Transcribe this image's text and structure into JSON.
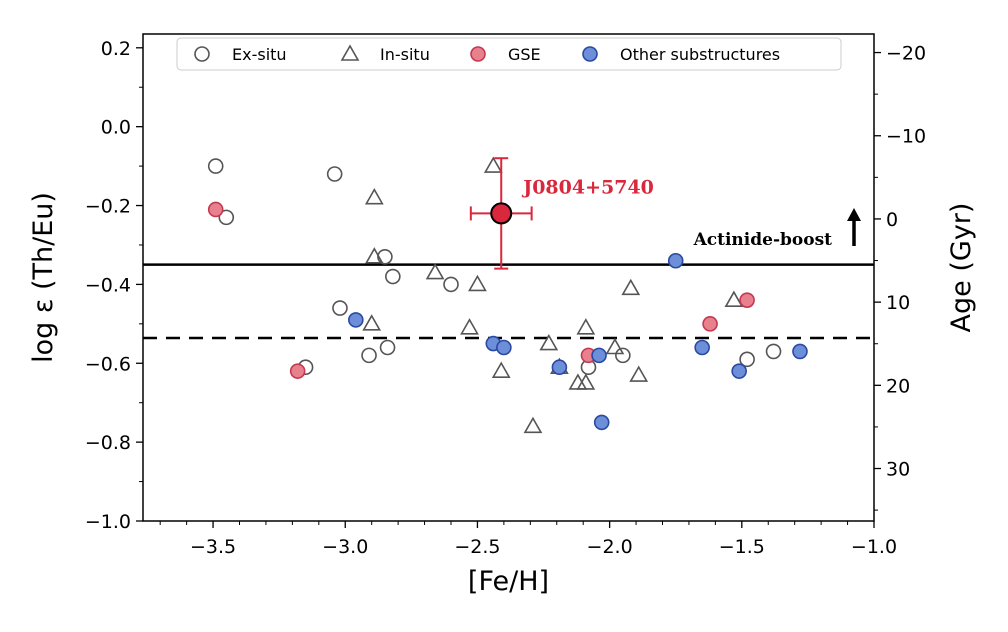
{
  "chart_data": {
    "type": "scatter",
    "xlabel": "[Fe/H]",
    "ylabel": "log ε (Th/Eu)",
    "y2label": "Age (Gyr)",
    "xlim": [
      -3.765,
      -1.0
    ],
    "ylim": [
      -1.0,
      0.235
    ],
    "xticks": [
      -3.5,
      -3.0,
      -2.5,
      -2.0,
      -1.5,
      -1.0
    ],
    "xtick_labels": [
      "−3.5",
      "−3.0",
      "−2.5",
      "−2.0",
      "−1.5",
      "−1.0"
    ],
    "yticks": [
      0.2,
      0.0,
      -0.2,
      -0.4,
      -0.6,
      -0.8,
      -1.0
    ],
    "ytick_labels": [
      "0.2",
      "0.0",
      "−0.2",
      "−0.4",
      "−0.6",
      "−0.8",
      "−1.0"
    ],
    "y2_axis": {
      "logeps_at_age_zero": -0.234,
      "gyr_per_dex": 47.4,
      "ticks": [
        -20,
        -10,
        0,
        10,
        20,
        30
      ],
      "tick_labels": [
        "−20",
        "−10",
        "0",
        "10",
        "20",
        "30"
      ]
    },
    "grid": false,
    "legend_position": "top",
    "series": [
      {
        "name": "Ex-situ",
        "marker": "circle-open",
        "color": "#555555",
        "points": [
          [
            -3.49,
            -0.1
          ],
          [
            -3.45,
            -0.23
          ],
          [
            -3.04,
            -0.12
          ],
          [
            -2.85,
            -0.33
          ],
          [
            -2.82,
            -0.38
          ],
          [
            -2.6,
            -0.4
          ],
          [
            -3.02,
            -0.46
          ],
          [
            -2.91,
            -0.58
          ],
          [
            -2.84,
            -0.56
          ],
          [
            -3.15,
            -0.61
          ],
          [
            -1.95,
            -0.58
          ],
          [
            -2.08,
            -0.61
          ],
          [
            -1.48,
            -0.59
          ],
          [
            -1.38,
            -0.57
          ]
        ]
      },
      {
        "name": "In-situ",
        "marker": "triangle-open",
        "color": "#555555",
        "points": [
          [
            -2.89,
            -0.18
          ],
          [
            -2.89,
            -0.33
          ],
          [
            -2.66,
            -0.37
          ],
          [
            -2.9,
            -0.5
          ],
          [
            -2.44,
            -0.1
          ],
          [
            -2.5,
            -0.4
          ],
          [
            -2.53,
            -0.51
          ],
          [
            -2.41,
            -0.62
          ],
          [
            -2.23,
            -0.55
          ],
          [
            -2.09,
            -0.51
          ],
          [
            -2.19,
            -0.61
          ],
          [
            -2.12,
            -0.65
          ],
          [
            -2.09,
            -0.65
          ],
          [
            -1.98,
            -0.56
          ],
          [
            -1.92,
            -0.41
          ],
          [
            -1.89,
            -0.63
          ],
          [
            -2.29,
            -0.76
          ],
          [
            -1.53,
            -0.44
          ]
        ]
      },
      {
        "name": "GSE",
        "marker": "circle-filled",
        "color": "#e8808e",
        "edge": "#c23a52",
        "points": [
          [
            -3.49,
            -0.21
          ],
          [
            -3.18,
            -0.62
          ],
          [
            -2.08,
            -0.58
          ],
          [
            -1.62,
            -0.5
          ],
          [
            -1.48,
            -0.44
          ]
        ]
      },
      {
        "name": "Other substructures",
        "marker": "circle-filled",
        "color": "#6d8ed8",
        "edge": "#2a4aa2",
        "points": [
          [
            -2.96,
            -0.49
          ],
          [
            -2.44,
            -0.55
          ],
          [
            -2.4,
            -0.56
          ],
          [
            -2.19,
            -0.61
          ],
          [
            -2.04,
            -0.58
          ],
          [
            -2.03,
            -0.75
          ],
          [
            -1.75,
            -0.34
          ],
          [
            -1.65,
            -0.56
          ],
          [
            -1.51,
            -0.62
          ],
          [
            -1.28,
            -0.57
          ]
        ]
      }
    ],
    "highlight": {
      "name": "J0804+5740",
      "x": -2.41,
      "y": -0.22,
      "xerr": 0.115,
      "yerr": 0.14,
      "color": "#d9283c"
    },
    "hlines": [
      {
        "y": -0.35,
        "style": "solid",
        "label": "Actinide-boost"
      },
      {
        "y": -0.536,
        "style": "dashed"
      }
    ]
  }
}
